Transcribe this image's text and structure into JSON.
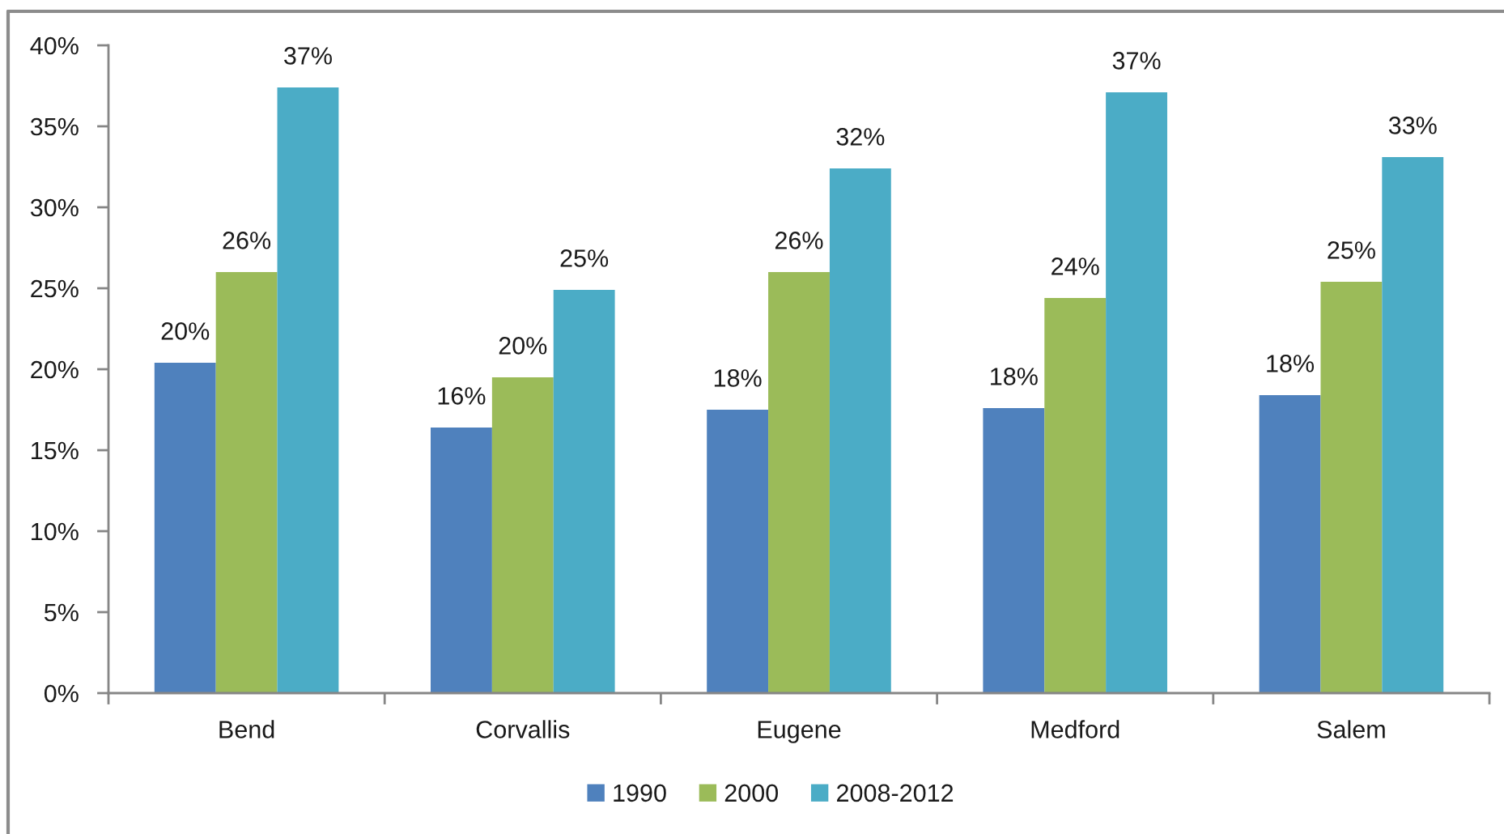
{
  "chart_data": {
    "type": "bar",
    "categories": [
      "Bend",
      "Corvallis",
      "Eugene",
      "Medford",
      "Salem"
    ],
    "series": [
      {
        "name": "1990",
        "color": "#4f81bd",
        "values": [
          20.4,
          16.4,
          17.5,
          17.6,
          18.4
        ],
        "value_labels": [
          "20%",
          "16%",
          "18%",
          "18%",
          "18%"
        ]
      },
      {
        "name": "2000",
        "color": "#9bbb59",
        "values": [
          26.0,
          19.5,
          26.0,
          24.4,
          25.4
        ],
        "value_labels": [
          "26%",
          "20%",
          "26%",
          "24%",
          "25%"
        ]
      },
      {
        "name": "2008-2012",
        "color": "#4bacc6",
        "values": [
          37.4,
          24.9,
          32.4,
          37.1,
          33.1
        ],
        "value_labels": [
          "37%",
          "25%",
          "32%",
          "37%",
          "33%"
        ]
      }
    ],
    "ylim": [
      0,
      40
    ],
    "yticks": [
      {
        "value": 0,
        "label": "0%"
      },
      {
        "value": 5,
        "label": "5%"
      },
      {
        "value": 10,
        "label": "10%"
      },
      {
        "value": 15,
        "label": "15%"
      },
      {
        "value": 20,
        "label": "20%"
      },
      {
        "value": 25,
        "label": "25%"
      },
      {
        "value": 30,
        "label": "30%"
      },
      {
        "value": 35,
        "label": "35%"
      },
      {
        "value": 40,
        "label": "40%"
      }
    ],
    "grid": false,
    "legend": "bottom"
  }
}
